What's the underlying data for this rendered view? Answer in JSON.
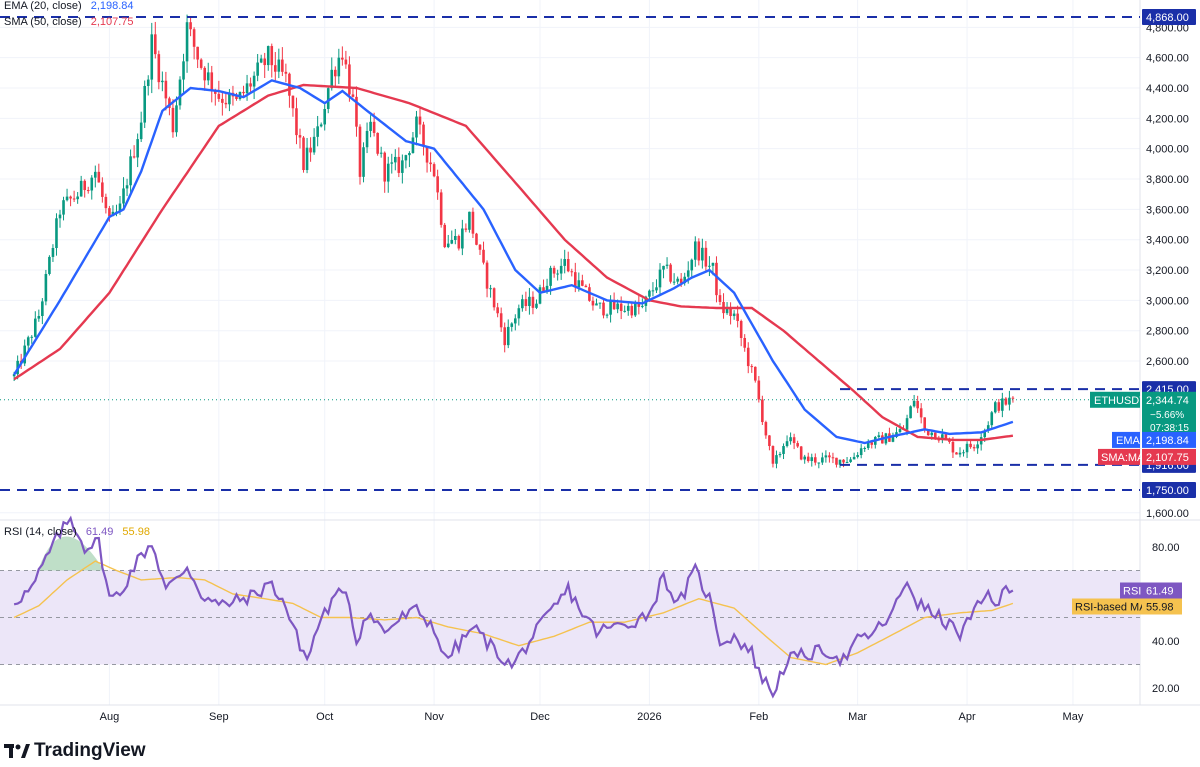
{
  "colors": {
    "up": "#089981",
    "down": "#f23645",
    "ema": "#2962ff",
    "sma": "#e53950",
    "rsi": "#7e57c2",
    "rsi_ma": "#f5c24f",
    "level": "#1a2fa8",
    "rsi_band": "#ece6f8",
    "grid": "#f0f3fa",
    "text": "#131722"
  },
  "legend": {
    "ema_label": "EMA (20, close)",
    "ema_value": "2,198.84",
    "sma_label": "SMA (50, close)",
    "sma_value": "2,107.75",
    "rsi_label": "RSI (14, close)",
    "rsi_value": "61.49",
    "rsi_ma_value": "55.98"
  },
  "price_tags": {
    "symbol": "ETHUSDT",
    "last": "2,344.74",
    "change": "−5.66%",
    "countdown": "07:38:15",
    "ema_name": "EMA",
    "ema_value": "2,198.84",
    "sma_name": "SMA:MA",
    "sma_value": "2,107.75",
    "rsi_name": "RSI",
    "rsi_value": "61.49",
    "rsi_ma_name": "RSI-based MA",
    "rsi_ma_value": "55.98"
  },
  "logo": {
    "text": "TradingView",
    "mark": "17"
  },
  "chart_data": [
    {
      "type": "candlestick",
      "symbol": "ETHUSDT",
      "ylim": [
        1500,
        4950
      ],
      "y_ticks": [
        "4,800.00",
        "4,600.00",
        "4,400.00",
        "4,200.00",
        "4,000.00",
        "3,800.00",
        "3,600.00",
        "3,400.00",
        "3,200.00",
        "3,000.00",
        "2,800.00",
        "2,600.00",
        "1,600.00"
      ],
      "y_tick_values": [
        4800,
        4600,
        4400,
        4200,
        4000,
        3800,
        3600,
        3400,
        3200,
        3000,
        2800,
        2600,
        1600
      ],
      "x_ticks": [
        "Aug",
        "Sep",
        "Oct",
        "Nov",
        "Dec",
        "2026",
        "Feb",
        "Mar",
        "Apr",
        "May"
      ],
      "x_tick_dates": [
        "2025-08-01",
        "2025-09-01",
        "2025-10-01",
        "2025-11-01",
        "2025-12-01",
        "2026-01-01",
        "2026-02-01",
        "2026-03-01",
        "2026-04-01",
        "2026-05-01"
      ],
      "first_date": "2025-07-05",
      "last_date": "2026-04-14",
      "close_anchors": [
        [
          "2025-07-05",
          2500
        ],
        [
          "2025-07-12",
          2900
        ],
        [
          "2025-07-18",
          3600
        ],
        [
          "2025-07-23",
          3700
        ],
        [
          "2025-07-28",
          3850
        ],
        [
          "2025-08-01",
          3500
        ],
        [
          "2025-08-04",
          3600
        ],
        [
          "2025-08-10",
          4200
        ],
        [
          "2025-08-13",
          4700
        ],
        [
          "2025-08-19",
          4150
        ],
        [
          "2025-08-23",
          4800
        ],
        [
          "2025-08-27",
          4550
        ],
        [
          "2025-09-01",
          4350
        ],
        [
          "2025-09-06",
          4300
        ],
        [
          "2025-09-12",
          4500
        ],
        [
          "2025-09-15",
          4600
        ],
        [
          "2025-09-20",
          4450
        ],
        [
          "2025-09-25",
          3900
        ],
        [
          "2025-09-29",
          4100
        ],
        [
          "2025-10-03",
          4500
        ],
        [
          "2025-10-06",
          4650
        ],
        [
          "2025-10-09",
          4300
        ],
        [
          "2025-10-11",
          3850
        ],
        [
          "2025-10-14",
          4150
        ],
        [
          "2025-10-18",
          3850
        ],
        [
          "2025-10-23",
          3900
        ],
        [
          "2025-10-27",
          4150
        ],
        [
          "2025-11-01",
          3850
        ],
        [
          "2025-11-04",
          3400
        ],
        [
          "2025-11-08",
          3400
        ],
        [
          "2025-11-11",
          3550
        ],
        [
          "2025-11-15",
          3200
        ],
        [
          "2025-11-21",
          2750
        ],
        [
          "2025-11-25",
          2950
        ],
        [
          "2025-11-30",
          3000
        ],
        [
          "2025-12-03",
          3150
        ],
        [
          "2025-12-08",
          3250
        ],
        [
          "2025-12-12",
          3100
        ],
        [
          "2025-12-17",
          2950
        ],
        [
          "2025-12-23",
          2950
        ],
        [
          "2025-12-30",
          2950
        ],
        [
          "2026-01-05",
          3200
        ],
        [
          "2026-01-10",
          3100
        ],
        [
          "2026-01-14",
          3350
        ],
        [
          "2026-01-19",
          3200
        ],
        [
          "2026-01-21",
          2950
        ],
        [
          "2026-01-25",
          2900
        ],
        [
          "2026-01-31",
          2450
        ],
        [
          "2026-02-05",
          1900
        ],
        [
          "2026-02-09",
          2100
        ],
        [
          "2026-02-14",
          1950
        ],
        [
          "2026-02-21",
          1950
        ],
        [
          "2026-02-27",
          1950
        ],
        [
          "2026-03-03",
          2050
        ],
        [
          "2026-03-10",
          2100
        ],
        [
          "2026-03-14",
          2150
        ],
        [
          "2026-03-17",
          2350
        ],
        [
          "2026-03-20",
          2150
        ],
        [
          "2026-03-25",
          2100
        ],
        [
          "2026-03-29",
          2000
        ],
        [
          "2026-04-03",
          2050
        ],
        [
          "2026-04-06",
          2150
        ],
        [
          "2026-04-09",
          2300
        ],
        [
          "2026-04-14",
          2345
        ]
      ],
      "ema20": [
        [
          "2025-07-05",
          2510
        ],
        [
          "2025-07-18",
          3000
        ],
        [
          "2025-08-01",
          3550
        ],
        [
          "2025-08-05",
          3600
        ],
        [
          "2025-08-10",
          3850
        ],
        [
          "2025-08-16",
          4250
        ],
        [
          "2025-08-24",
          4400
        ],
        [
          "2025-09-01",
          4380
        ],
        [
          "2025-09-08",
          4340
        ],
        [
          "2025-09-16",
          4450
        ],
        [
          "2025-09-24",
          4400
        ],
        [
          "2025-10-01",
          4300
        ],
        [
          "2025-10-06",
          4380
        ],
        [
          "2025-10-13",
          4250
        ],
        [
          "2025-10-24",
          4050
        ],
        [
          "2025-11-01",
          4000
        ],
        [
          "2025-11-08",
          3800
        ],
        [
          "2025-11-15",
          3600
        ],
        [
          "2025-11-24",
          3200
        ],
        [
          "2025-12-01",
          3050
        ],
        [
          "2025-12-10",
          3100
        ],
        [
          "2025-12-20",
          3000
        ],
        [
          "2025-12-30",
          2980
        ],
        [
          "2026-01-08",
          3080
        ],
        [
          "2026-01-13",
          3150
        ],
        [
          "2026-01-18",
          3200
        ],
        [
          "2026-01-25",
          3050
        ],
        [
          "2026-02-05",
          2600
        ],
        [
          "2026-02-14",
          2280
        ],
        [
          "2026-02-23",
          2100
        ],
        [
          "2026-03-03",
          2060
        ],
        [
          "2026-03-10",
          2100
        ],
        [
          "2026-03-20",
          2150
        ],
        [
          "2026-03-27",
          2120
        ],
        [
          "2026-04-05",
          2130
        ],
        [
          "2026-04-14",
          2199
        ]
      ],
      "sma50": [
        [
          "2025-07-05",
          2480
        ],
        [
          "2025-07-18",
          2680
        ],
        [
          "2025-08-01",
          3050
        ],
        [
          "2025-08-16",
          3600
        ],
        [
          "2025-09-01",
          4150
        ],
        [
          "2025-09-15",
          4350
        ],
        [
          "2025-09-25",
          4420
        ],
        [
          "2025-10-10",
          4400
        ],
        [
          "2025-10-25",
          4300
        ],
        [
          "2025-11-10",
          4150
        ],
        [
          "2025-11-25",
          3750
        ],
        [
          "2025-12-08",
          3400
        ],
        [
          "2025-12-20",
          3150
        ],
        [
          "2026-01-01",
          3000
        ],
        [
          "2026-01-10",
          2960
        ],
        [
          "2026-01-20",
          2950
        ],
        [
          "2026-01-30",
          2950
        ],
        [
          "2026-02-08",
          2800
        ],
        [
          "2026-02-18",
          2600
        ],
        [
          "2026-02-28",
          2400
        ],
        [
          "2026-03-08",
          2230
        ],
        [
          "2026-03-18",
          2100
        ],
        [
          "2026-03-28",
          2080
        ],
        [
          "2026-04-05",
          2080
        ],
        [
          "2026-04-14",
          2108
        ]
      ],
      "levels": [
        {
          "label": "4,868.00",
          "value": 4868,
          "from": "2025-07-01"
        },
        {
          "label": "2,415.00",
          "value": 2415,
          "from": "2026-02-24"
        },
        {
          "label": "1,916.00",
          "value": 1916,
          "from": "2026-02-24"
        },
        {
          "label": "1,750.00",
          "value": 1750,
          "from": "2025-07-01"
        }
      ],
      "current_price": 2344.74,
      "ema_last": 2198.84,
      "sma_last": 2107.75
    },
    {
      "type": "line",
      "name": "RSI (14, close)",
      "ylim": [
        12,
        95
      ],
      "y_ticks": [
        "80.00",
        "40.00",
        "20.00"
      ],
      "y_tick_values": [
        80,
        40,
        20
      ],
      "band": [
        30,
        70
      ],
      "rsi_anchors": [
        [
          "2025-07-05",
          57
        ],
        [
          "2025-07-10",
          62
        ],
        [
          "2025-07-14",
          75
        ],
        [
          "2025-07-18",
          86
        ],
        [
          "2025-07-21",
          92
        ],
        [
          "2025-07-25",
          80
        ],
        [
          "2025-07-29",
          82
        ],
        [
          "2025-08-01",
          58
        ],
        [
          "2025-08-04",
          60
        ],
        [
          "2025-08-08",
          72
        ],
        [
          "2025-08-13",
          82
        ],
        [
          "2025-08-17",
          62
        ],
        [
          "2025-08-20",
          66
        ],
        [
          "2025-08-23",
          72
        ],
        [
          "2025-08-27",
          60
        ],
        [
          "2025-09-01",
          55
        ],
        [
          "2025-09-06",
          57
        ],
        [
          "2025-09-12",
          60
        ],
        [
          "2025-09-15",
          65
        ],
        [
          "2025-09-19",
          58
        ],
        [
          "2025-09-23",
          42
        ],
        [
          "2025-09-26",
          32
        ],
        [
          "2025-09-30",
          50
        ],
        [
          "2025-10-04",
          58
        ],
        [
          "2025-10-07",
          63
        ],
        [
          "2025-10-10",
          40
        ],
        [
          "2025-10-13",
          52
        ],
        [
          "2025-10-18",
          44
        ],
        [
          "2025-10-23",
          50
        ],
        [
          "2025-10-27",
          53
        ],
        [
          "2025-11-01",
          46
        ],
        [
          "2025-11-04",
          32
        ],
        [
          "2025-11-09",
          40
        ],
        [
          "2025-11-12",
          46
        ],
        [
          "2025-11-17",
          38
        ],
        [
          "2025-11-23",
          29
        ],
        [
          "2025-11-29",
          42
        ],
        [
          "2025-12-04",
          52
        ],
        [
          "2025-12-09",
          62
        ],
        [
          "2025-12-13",
          52
        ],
        [
          "2025-12-17",
          44
        ],
        [
          "2025-12-22",
          46
        ],
        [
          "2025-12-27",
          48
        ],
        [
          "2026-01-01",
          52
        ],
        [
          "2026-01-05",
          68
        ],
        [
          "2026-01-09",
          55
        ],
        [
          "2026-01-14",
          70
        ],
        [
          "2026-01-18",
          58
        ],
        [
          "2026-01-21",
          40
        ],
        [
          "2026-01-25",
          42
        ],
        [
          "2026-01-30",
          35
        ],
        [
          "2026-02-02",
          24
        ],
        [
          "2026-02-05",
          18
        ],
        [
          "2026-02-09",
          32
        ],
        [
          "2026-02-14",
          34
        ],
        [
          "2026-02-20",
          36
        ],
        [
          "2026-02-25",
          32
        ],
        [
          "2026-03-01",
          40
        ],
        [
          "2026-03-06",
          44
        ],
        [
          "2026-03-11",
          52
        ],
        [
          "2026-03-15",
          66
        ],
        [
          "2026-03-18",
          56
        ],
        [
          "2026-03-22",
          52
        ],
        [
          "2026-03-26",
          48
        ],
        [
          "2026-03-30",
          43
        ],
        [
          "2026-04-03",
          52
        ],
        [
          "2026-04-07",
          60
        ],
        [
          "2026-04-10",
          56
        ],
        [
          "2026-04-12",
          62
        ],
        [
          "2026-04-14",
          61.5
        ]
      ],
      "rsi_ma_anchors": [
        [
          "2025-07-05",
          50
        ],
        [
          "2025-07-12",
          55
        ],
        [
          "2025-07-20",
          66
        ],
        [
          "2025-07-28",
          74
        ],
        [
          "2025-08-03",
          70
        ],
        [
          "2025-08-10",
          66
        ],
        [
          "2025-08-20",
          67
        ],
        [
          "2025-08-28",
          66
        ],
        [
          "2025-09-05",
          60
        ],
        [
          "2025-09-14",
          58
        ],
        [
          "2025-09-22",
          56
        ],
        [
          "2025-09-30",
          50
        ],
        [
          "2025-10-08",
          50
        ],
        [
          "2025-10-18",
          49
        ],
        [
          "2025-10-27",
          50
        ],
        [
          "2025-11-05",
          46
        ],
        [
          "2025-11-15",
          43
        ],
        [
          "2025-11-25",
          38
        ],
        [
          "2025-12-05",
          42
        ],
        [
          "2025-12-15",
          48
        ],
        [
          "2025-12-25",
          48
        ],
        [
          "2026-01-05",
          52
        ],
        [
          "2026-01-15",
          58
        ],
        [
          "2026-01-25",
          54
        ],
        [
          "2026-02-03",
          42
        ],
        [
          "2026-02-10",
          33
        ],
        [
          "2026-02-20",
          30
        ],
        [
          "2026-03-01",
          35
        ],
        [
          "2026-03-10",
          42
        ],
        [
          "2026-03-20",
          50
        ],
        [
          "2026-03-30",
          52
        ],
        [
          "2026-04-08",
          53
        ],
        [
          "2026-04-14",
          56
        ]
      ],
      "rsi_last": 61.49,
      "rsi_ma_last": 55.98
    }
  ]
}
